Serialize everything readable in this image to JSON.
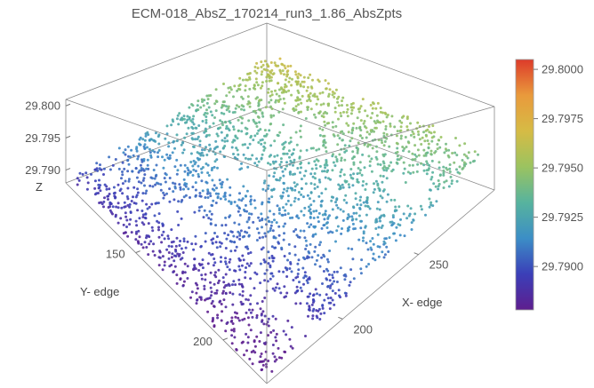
{
  "chart_data": {
    "type": "scatter",
    "subtype": "3d-point-cloud",
    "title": "ECM-018_AbsZ_170214_run3_1.86_AbsZpts",
    "xlabel": "X- edge",
    "ylabel": "Y- edge",
    "zlabel": "Z",
    "x_ticks": [
      "200",
      "250"
    ],
    "y_ticks": [
      "150",
      "200"
    ],
    "z_ticks": [
      "29.790",
      "29.795",
      "29.800"
    ],
    "xlim": [
      150,
      300
    ],
    "ylim": [
      110,
      225
    ],
    "zlim": [
      29.788,
      29.801
    ],
    "colorbar": {
      "min": 29.7878,
      "max": 29.8005,
      "ticks": [
        "29.7900",
        "29.7925",
        "29.7950",
        "29.7975",
        "29.8000"
      ],
      "colormap": [
        "#5e1e8e",
        "#3b3fb8",
        "#3c8ec6",
        "#57b39e",
        "#9bc360",
        "#d6bb45",
        "#e99a3c",
        "#dd3b2a"
      ]
    },
    "grid": false,
    "box": true,
    "point_color_by": "z",
    "surface_model": {
      "base_z": 29.7915,
      "dz_dx": 5e-05,
      "dz_dy": 1.8e-05,
      "noise": 0.0006,
      "points": 2600
    }
  }
}
